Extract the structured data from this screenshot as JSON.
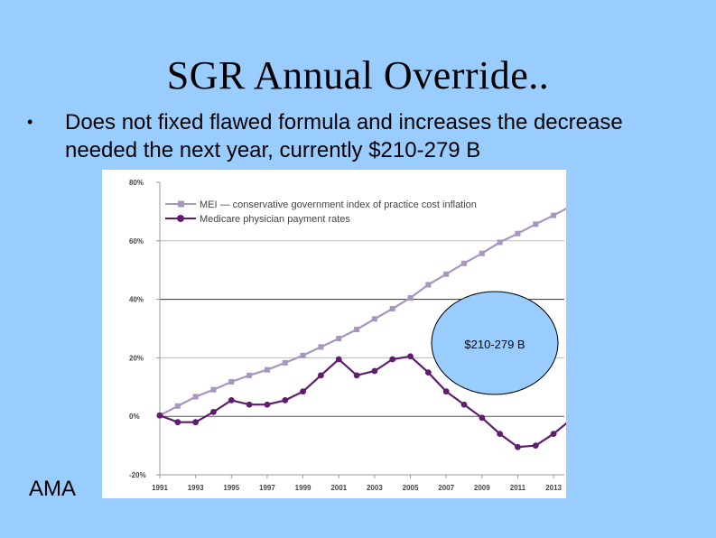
{
  "slide": {
    "title": "SGR Annual Override..",
    "bullet_marker": "•",
    "bullet_text": "Does not fixed flawed formula and increases the decrease needed the next year, currently $210-279 B",
    "source": "AMA"
  },
  "colors": {
    "background": "#99ccff",
    "mei": "#a895c0",
    "medicare": "#5e1d6e",
    "annotation_fill": "#99ccff"
  },
  "chart_data": {
    "type": "line",
    "title": "",
    "xlabel": "",
    "ylabel": "",
    "ylim": [
      -20,
      80
    ],
    "yticks": [
      -20,
      0,
      20,
      40,
      60,
      80
    ],
    "ytick_labels": [
      "-20%",
      "0%",
      "20%",
      "40%",
      "60%",
      "80%"
    ],
    "xlim": [
      1991,
      2013.6
    ],
    "xticks": [
      1991,
      1993,
      1995,
      1997,
      1999,
      2001,
      2003,
      2005,
      2007,
      2009,
      2011,
      2013
    ],
    "xtick_labels": [
      "1991",
      "1993",
      "1995",
      "1997",
      "1999",
      "2001",
      "2003",
      "2005",
      "2007",
      "2009",
      "2011",
      "2013"
    ],
    "gridlines_at": [
      0,
      20,
      40,
      60
    ],
    "legend_position": "top-left",
    "series": [
      {
        "name": "MEI — conservative government index of practice cost inflation",
        "marker": "square",
        "x": [
          1991,
          1992,
          1993,
          1994,
          1995,
          1996,
          1997,
          1998,
          1999,
          2000,
          2001,
          2002,
          2003,
          2004,
          2005,
          2006,
          2007,
          2008,
          2009,
          2010,
          2011,
          2012,
          2013,
          2014
        ],
        "values": [
          0.3,
          3.5,
          6.7,
          9.1,
          11.8,
          14.0,
          15.9,
          18.3,
          20.8,
          23.7,
          26.6,
          29.7,
          33.3,
          36.8,
          40.5,
          45.0,
          48.6,
          52.3,
          55.7,
          59.5,
          62.5,
          65.7,
          68.7,
          72.0
        ]
      },
      {
        "name": "Medicare physician payment rates",
        "marker": "circle",
        "x": [
          1991,
          1992,
          1993,
          1994,
          1995,
          1996,
          1997,
          1998,
          1999,
          2000,
          2001,
          2002,
          2003,
          2004,
          2005,
          2006,
          2007,
          2008,
          2009,
          2010,
          2011,
          2012,
          2013,
          2014
        ],
        "values": [
          0.3,
          -2.0,
          -2.0,
          1.5,
          5.5,
          4.0,
          4.0,
          5.5,
          8.5,
          14.0,
          19.5,
          14.0,
          15.5,
          19.5,
          20.5,
          15.0,
          8.5,
          4.0,
          -0.5,
          -6.0,
          -10.5,
          -10.0,
          -6.0,
          -1.0
        ]
      }
    ],
    "annotations": [
      {
        "text": "$210-279 B"
      }
    ]
  }
}
